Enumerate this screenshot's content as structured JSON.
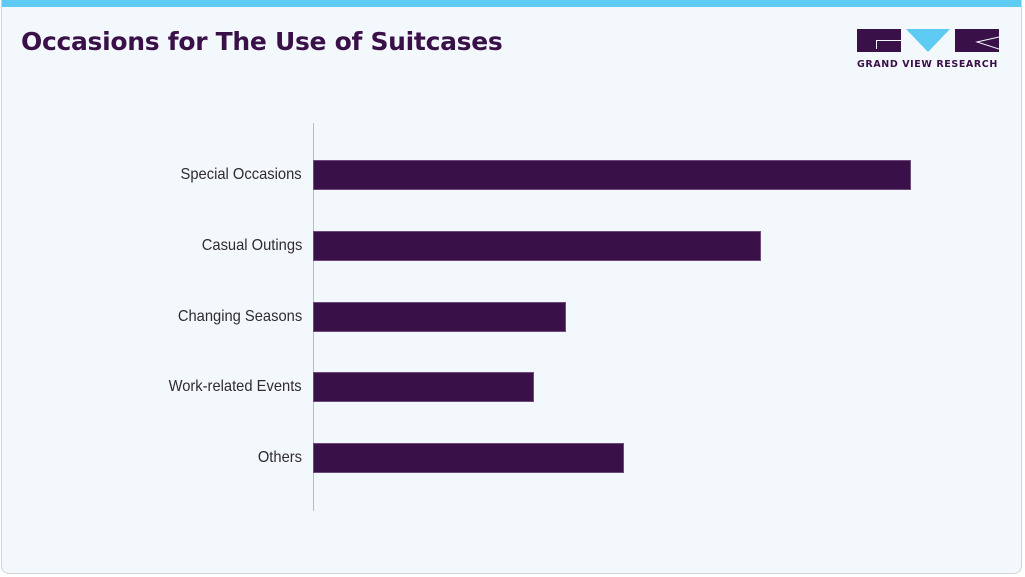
{
  "header": {
    "title": "Occasions for The Use of Suitcases",
    "accent_color": "#5ecbf3"
  },
  "logo": {
    "text": "GRAND VIEW RESEARCH",
    "primary_color": "#3a1049",
    "secondary_color": "#5ecbf3"
  },
  "chart_data": {
    "type": "bar",
    "orientation": "horizontal",
    "title": "Occasions for The Use of Suitcases",
    "xlabel": "",
    "ylabel": "",
    "categories": [
      "Special Occasions",
      "Casual Outings",
      "Changing Seasons",
      "Work-related Events",
      "Others"
    ],
    "values": [
      100,
      74.9,
      42.3,
      37.0,
      52.0
    ],
    "value_note": "relative bar length (longest = 100); no value axis or data labels shown",
    "bar_color": "#3a1049",
    "grid": false,
    "legend": "none",
    "xlim": [
      0,
      100
    ]
  }
}
